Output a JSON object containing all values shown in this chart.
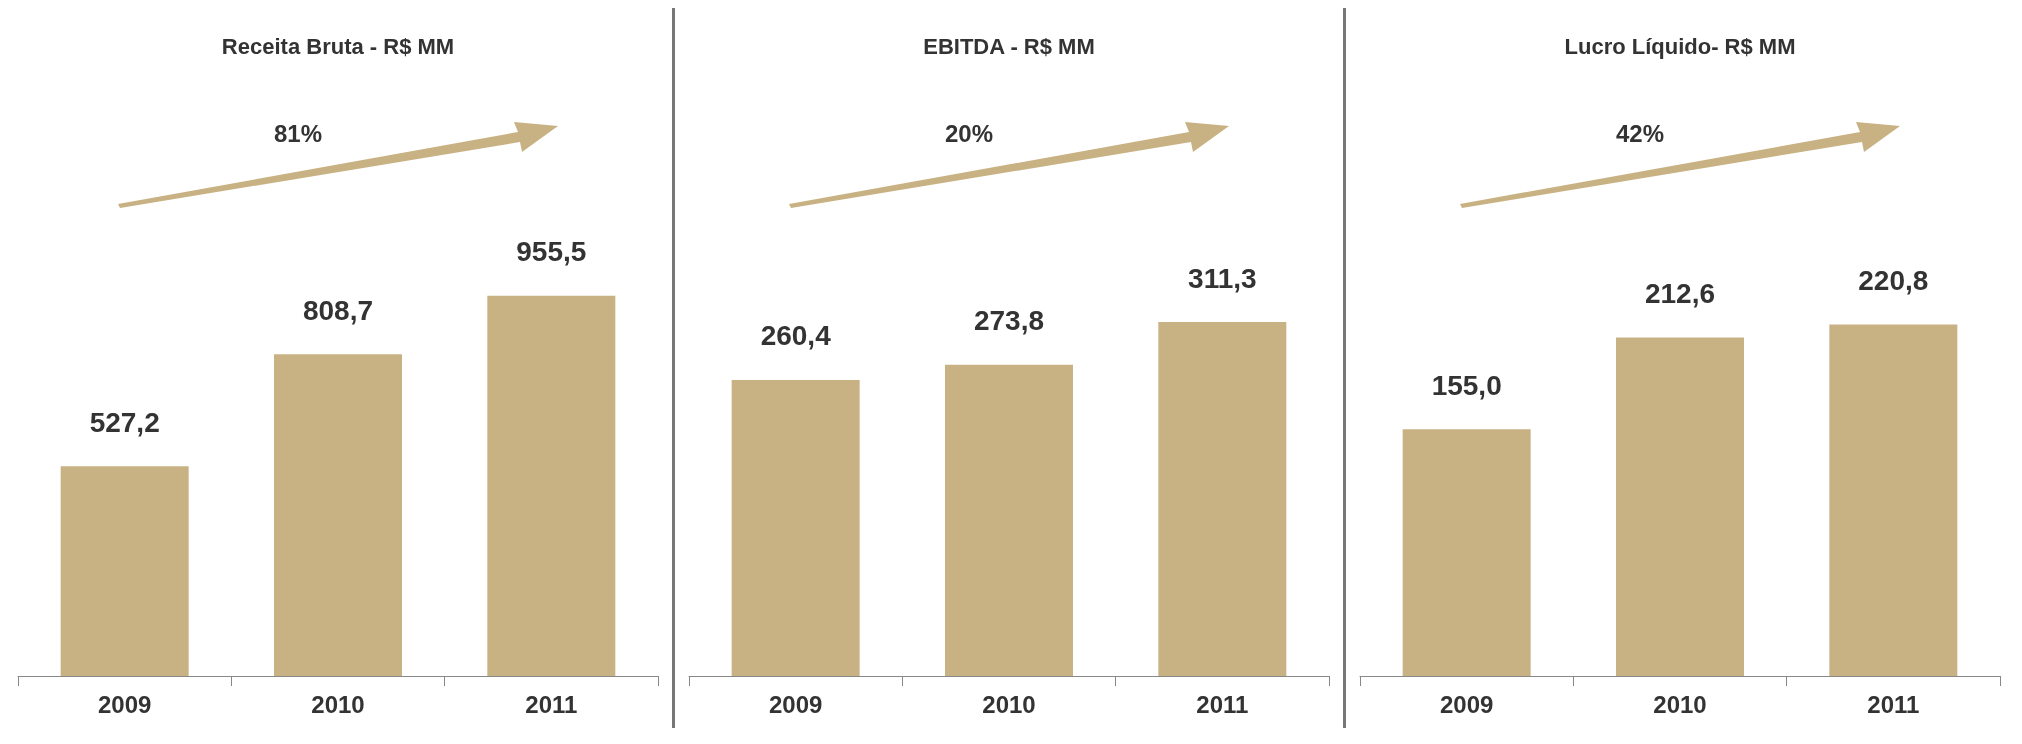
{
  "chart_data": [
    {
      "type": "bar",
      "title": "Receita Bruta - R$ MM",
      "categories": [
        "2009",
        "2010",
        "2011"
      ],
      "values": [
        527.2,
        808.7,
        955.5
      ],
      "value_labels": [
        "527,2",
        "808,7",
        "955,5"
      ],
      "color": "#c8b283",
      "annotations": [
        "81%"
      ],
      "tick_labels": "x"
    },
    {
      "type": "bar",
      "title": "EBITDA - R$ MM",
      "categories": [
        "2009",
        "2010",
        "2011"
      ],
      "values": [
        260.4,
        273.8,
        311.3
      ],
      "value_labels": [
        "260,4",
        "273,8",
        "311,3"
      ],
      "color": "#c8b283",
      "annotations": [
        "20%"
      ],
      "tick_labels": "x"
    },
    {
      "type": "bar",
      "title": "Lucro Líquido- R$ MM",
      "categories": [
        "2009",
        "2010",
        "2011"
      ],
      "values": [
        155.0,
        212.6,
        220.8
      ],
      "value_labels": [
        "155,0",
        "212,6",
        "220,8"
      ],
      "color": "#c8b283",
      "annotations": [
        "42%"
      ],
      "tick_labels": "x"
    }
  ]
}
